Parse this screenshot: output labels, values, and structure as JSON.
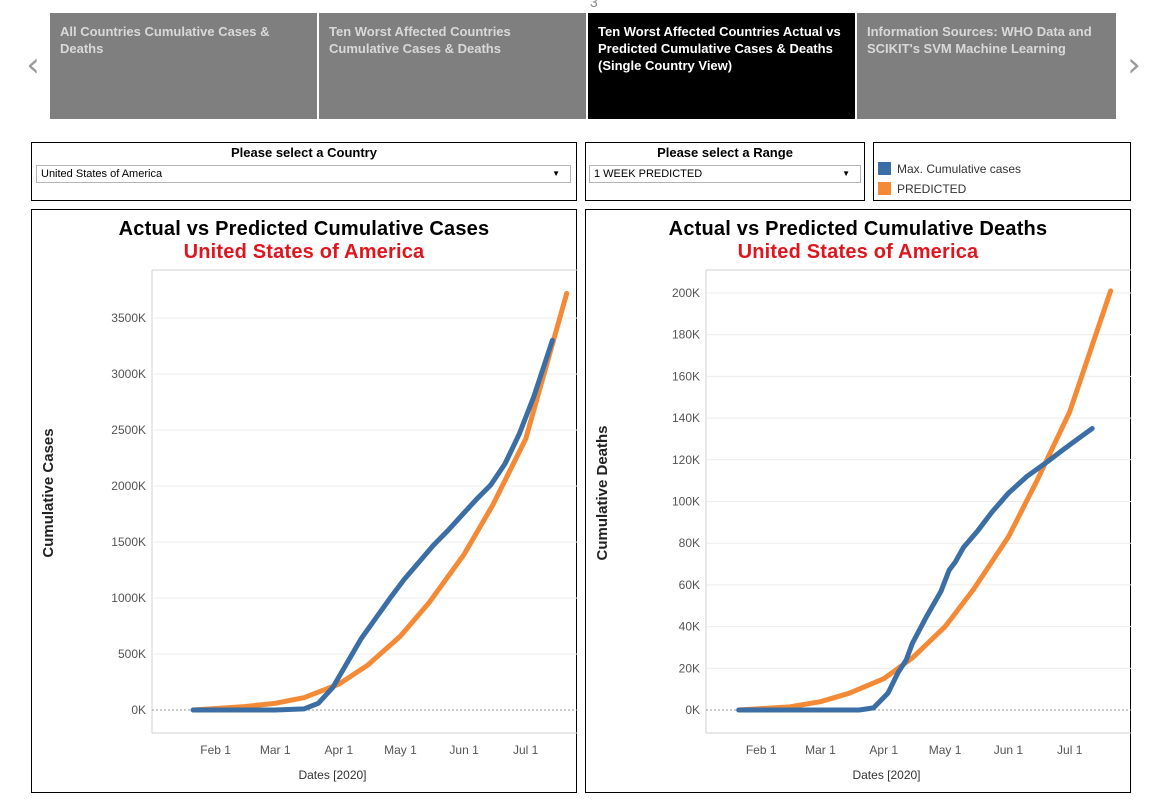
{
  "story": {
    "index": "3",
    "prev_glyph": "‹",
    "next_glyph": "›",
    "tabs": [
      {
        "label": "All Countries Cumulative Cases & Deaths",
        "active": false
      },
      {
        "label": "Ten Worst Affected Countries Cumulative Cases & Deaths",
        "active": false
      },
      {
        "label": "Ten Worst Affected Countries Actual vs Predicted Cumulative Cases & Deaths (Single Country View)",
        "active": true
      },
      {
        "label": "Information Sources: WHO Data and SCIKIT's SVM Machine Learning",
        "active": false
      }
    ]
  },
  "filters": {
    "country": {
      "title": "Please select a Country",
      "value": "United States of America",
      "caret": "▼"
    },
    "range": {
      "title": "Please select a Range",
      "value": "1 WEEK PREDICTED",
      "caret": "▼"
    }
  },
  "legend": [
    {
      "label": "Max. Cumulative cases",
      "color": "#3b6ea5"
    },
    {
      "label": "PREDICTED",
      "color": "#f58a36"
    }
  ],
  "colors": {
    "actual": "#3b6ea5",
    "predicted": "#f58a36",
    "subtitle": "#e0161e"
  },
  "chart_data": [
    {
      "type": "line",
      "title": "Actual vs Predicted Cumulative Cases",
      "subtitle": "United States of America",
      "xlabel": "Dates  [2020]",
      "ylabel": "Cumulative Cases",
      "x_ticks": [
        "Feb 1",
        "Mar 1",
        "Apr 1",
        "May 1",
        "Jun 1",
        "Jul 1"
      ],
      "y_ticks": [
        "0K",
        "500K",
        "1000K",
        "1500K",
        "2000K",
        "2500K",
        "3000K",
        "3500K"
      ],
      "ylim": [
        0,
        3700000
      ],
      "series": [
        {
          "name": "Max. Cumulative cases",
          "x": [
            "2020-01-21",
            "2020-02-15",
            "2020-03-01",
            "2020-03-15",
            "2020-03-22",
            "2020-03-29",
            "2020-04-05",
            "2020-04-12",
            "2020-04-19",
            "2020-04-26",
            "2020-05-03",
            "2020-05-10",
            "2020-05-17",
            "2020-05-24",
            "2020-05-31",
            "2020-06-07",
            "2020-06-14",
            "2020-06-21",
            "2020-06-28",
            "2020-07-05",
            "2020-07-14"
          ],
          "y": [
            0,
            0,
            0,
            10000,
            60000,
            200000,
            420000,
            640000,
            820000,
            1000000,
            1170000,
            1320000,
            1470000,
            1600000,
            1740000,
            1880000,
            2010000,
            2200000,
            2470000,
            2800000,
            3300000
          ]
        },
        {
          "name": "PREDICTED",
          "x": [
            "2020-01-21",
            "2020-02-15",
            "2020-03-01",
            "2020-03-15",
            "2020-04-01",
            "2020-04-15",
            "2020-05-01",
            "2020-05-15",
            "2020-06-01",
            "2020-06-15",
            "2020-07-01",
            "2020-07-21"
          ],
          "y": [
            0,
            30000,
            60000,
            110000,
            230000,
            400000,
            660000,
            960000,
            1390000,
            1830000,
            2420000,
            3720000
          ]
        }
      ]
    },
    {
      "type": "line",
      "title": "Actual vs Predicted Cumulative Deaths",
      "subtitle": "United States of America",
      "xlabel": "Dates  [2020]",
      "ylabel": "Cumulative Deaths",
      "x_ticks": [
        "Feb 1",
        "Mar 1",
        "Apr 1",
        "May 1",
        "Jun 1",
        "Jul 1"
      ],
      "y_ticks": [
        "0K",
        "20K",
        "40K",
        "60K",
        "80K",
        "100K",
        "120K",
        "140K",
        "160K",
        "180K",
        "200K"
      ],
      "ylim": [
        0,
        206000
      ],
      "series": [
        {
          "name": "Max. Cumulative cases",
          "x": [
            "2020-01-21",
            "2020-03-20",
            "2020-03-27",
            "2020-04-03",
            "2020-04-08",
            "2020-04-12",
            "2020-04-15",
            "2020-04-22",
            "2020-04-29",
            "2020-05-03",
            "2020-05-06",
            "2020-05-10",
            "2020-05-17",
            "2020-05-24",
            "2020-06-01",
            "2020-06-10",
            "2020-06-20",
            "2020-06-28",
            "2020-07-05",
            "2020-07-12"
          ],
          "y": [
            0,
            0,
            1000,
            8000,
            18000,
            24000,
            32000,
            45000,
            57000,
            67000,
            71000,
            78000,
            86000,
            95000,
            104000,
            112000,
            119000,
            125000,
            130000,
            135000
          ]
        },
        {
          "name": "PREDICTED",
          "x": [
            "2020-01-21",
            "2020-02-15",
            "2020-03-01",
            "2020-03-15",
            "2020-04-01",
            "2020-04-15",
            "2020-05-01",
            "2020-05-15",
            "2020-06-01",
            "2020-06-15",
            "2020-07-01",
            "2020-07-21"
          ],
          "y": [
            0,
            1500,
            4000,
            8000,
            15000,
            25000,
            40000,
            58000,
            83000,
            110000,
            143000,
            201000
          ]
        }
      ]
    }
  ]
}
